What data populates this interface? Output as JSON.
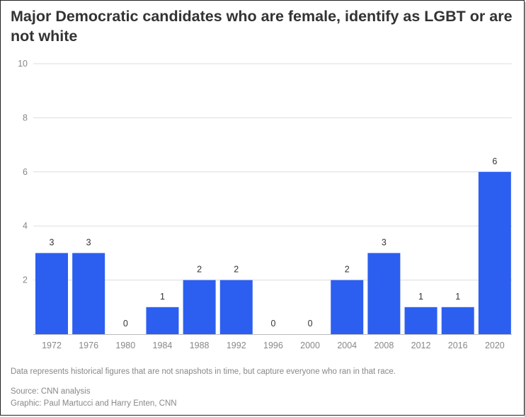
{
  "colors": {
    "bar": "#2c5ff0",
    "grid": "#dddddd",
    "axis_text": "#888888",
    "label_text": "#333333",
    "title_text": "#333333"
  },
  "chart_data": {
    "type": "bar",
    "title": "Major Democratic candidates who are female, identify as LGBT or are not white",
    "categories": [
      "1972",
      "1976",
      "1980",
      "1984",
      "1988",
      "1992",
      "1996",
      "2000",
      "2004",
      "2008",
      "2012",
      "2016",
      "2020"
    ],
    "values": [
      3,
      3,
      0,
      1,
      2,
      2,
      0,
      0,
      2,
      3,
      1,
      1,
      6
    ],
    "ylim": [
      0,
      10
    ],
    "yticks": [
      2,
      4,
      6,
      8,
      10
    ],
    "grid": true,
    "data_labels": true
  },
  "footer": {
    "note": "Data represents historical figures that are not snapshots in time, but capture everyone who ran in that race.",
    "source": "Source: CNN analysis",
    "credit": "Graphic: Paul Martucci and Harry Enten, CNN"
  }
}
